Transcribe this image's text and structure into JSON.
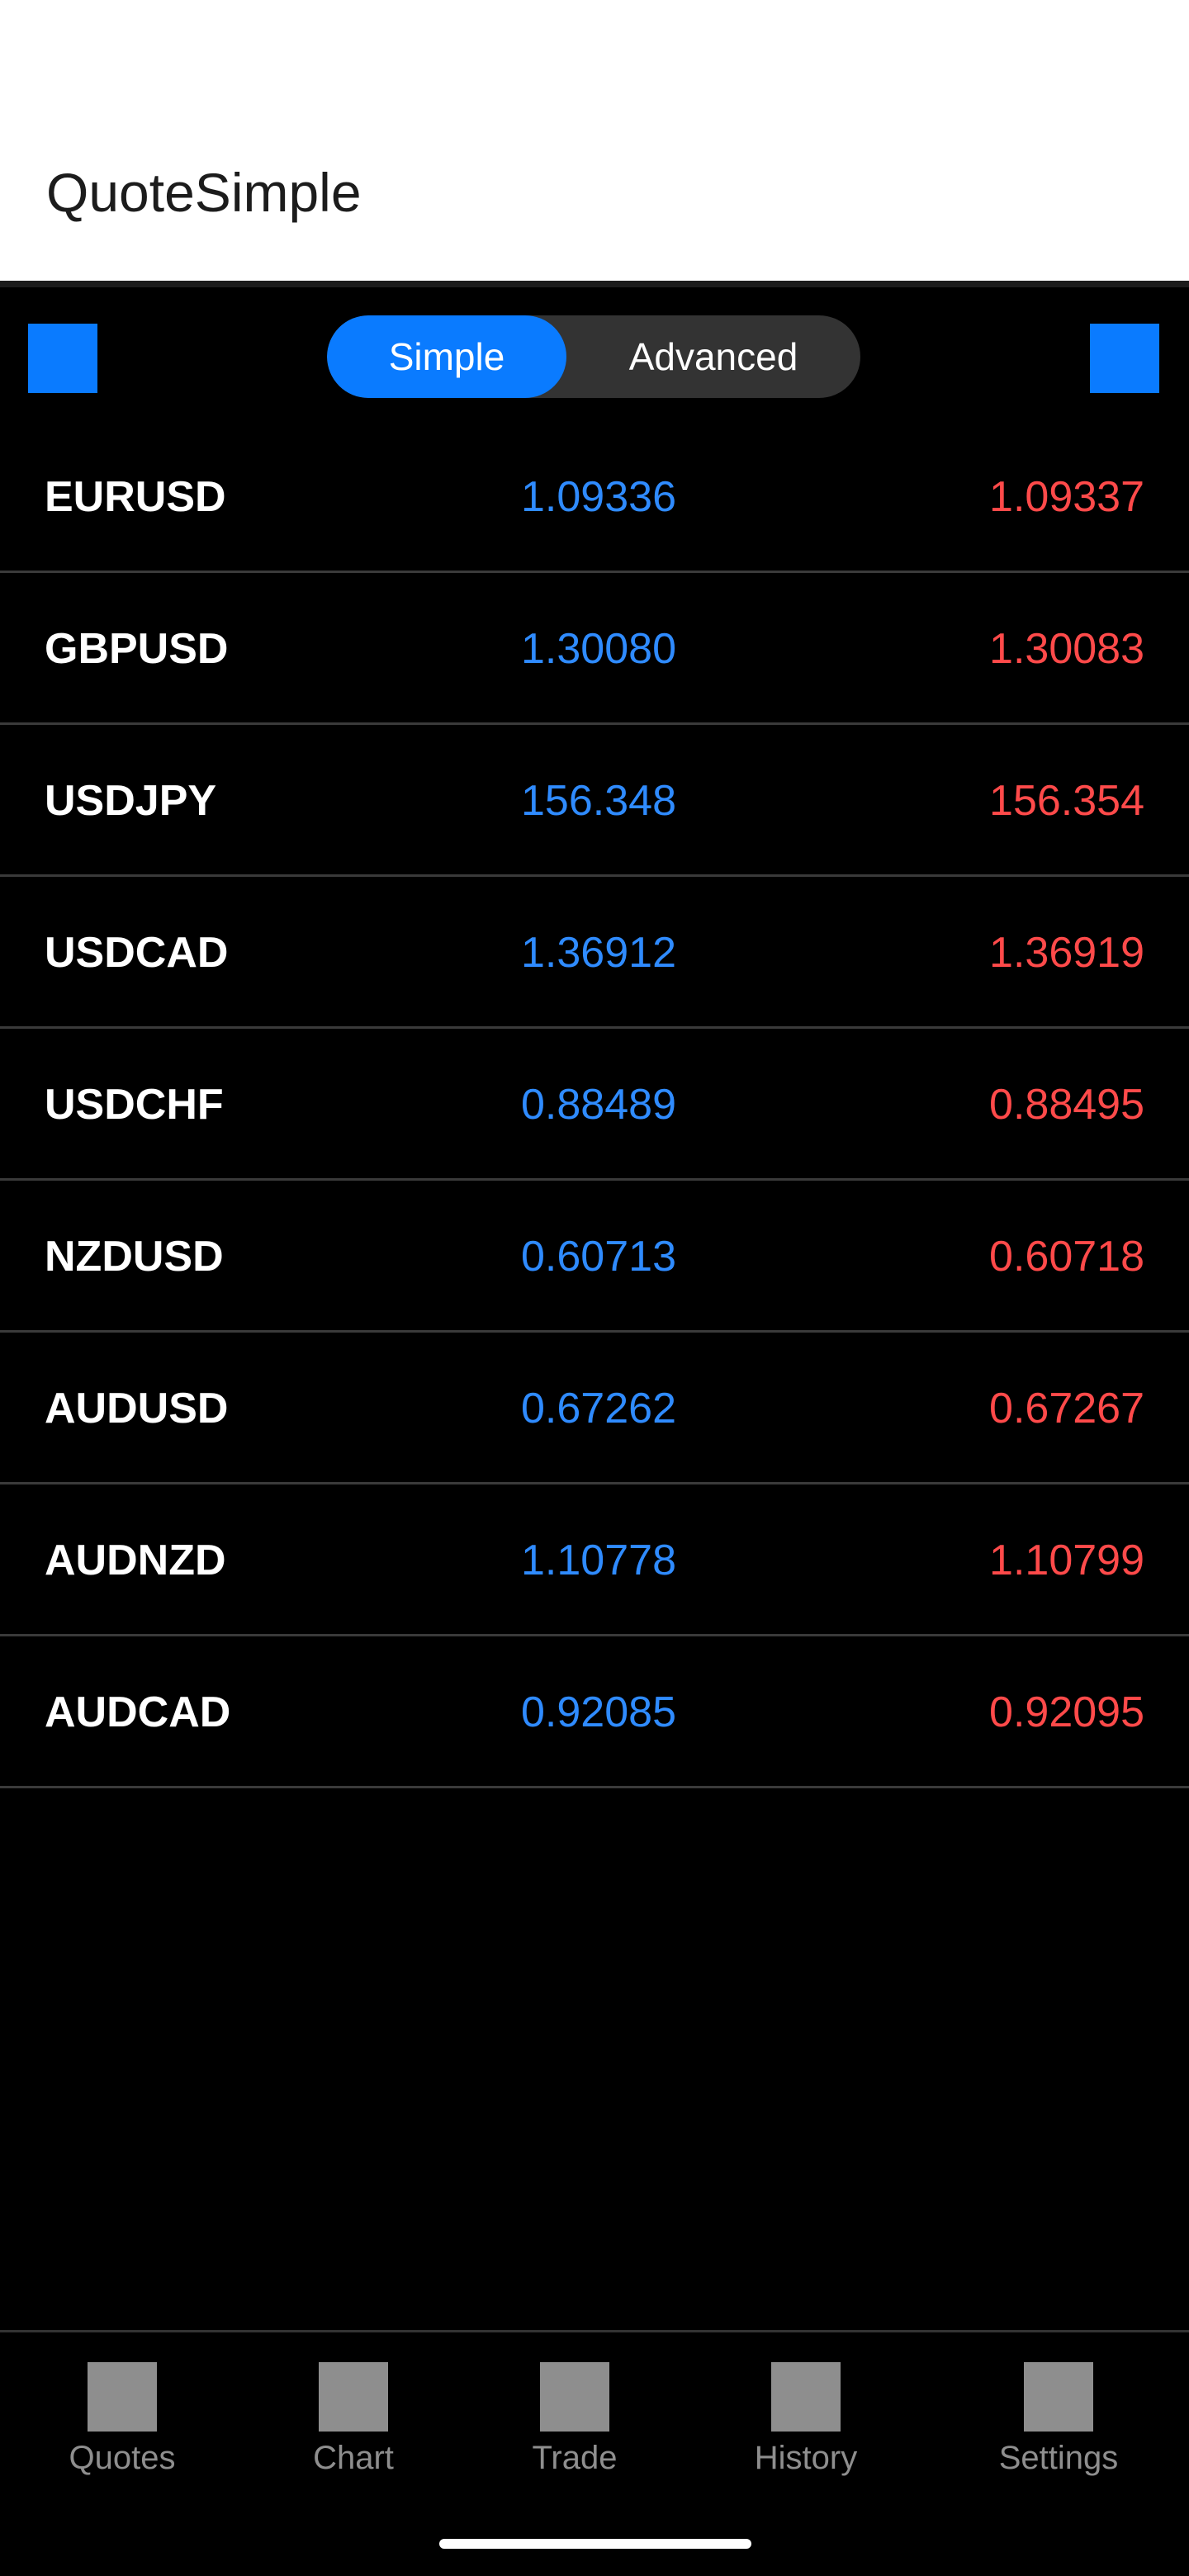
{
  "header": {
    "title": "QuoteSimple"
  },
  "toolbar": {
    "left_button_icon": "square-icon",
    "right_button_icon": "square-icon",
    "segments": [
      {
        "label": "Simple",
        "selected": true
      },
      {
        "label": "Advanced",
        "selected": false
      }
    ]
  },
  "quotes": [
    {
      "symbol": "EURUSD",
      "bid": "1.09336",
      "ask": "1.09337"
    },
    {
      "symbol": "GBPUSD",
      "bid": "1.30080",
      "ask": "1.30083"
    },
    {
      "symbol": "USDJPY",
      "bid": "156.348",
      "ask": "156.354"
    },
    {
      "symbol": "USDCAD",
      "bid": "1.36912",
      "ask": "1.36919"
    },
    {
      "symbol": "USDCHF",
      "bid": "0.88489",
      "ask": "0.88495"
    },
    {
      "symbol": "NZDUSD",
      "bid": "0.60713",
      "ask": "0.60718"
    },
    {
      "symbol": "AUDUSD",
      "bid": "0.67262",
      "ask": "0.67267"
    },
    {
      "symbol": "AUDNZD",
      "bid": "1.10778",
      "ask": "1.10799"
    },
    {
      "symbol": "AUDCAD",
      "bid": "0.92085",
      "ask": "0.92095"
    }
  ],
  "bottom_nav": {
    "items": [
      {
        "label": "Quotes",
        "icon": "quotes-icon"
      },
      {
        "label": "Chart",
        "icon": "chart-icon"
      },
      {
        "label": "Trade",
        "icon": "trade-icon"
      },
      {
        "label": "History",
        "icon": "history-icon"
      },
      {
        "label": "Settings",
        "icon": "settings-icon"
      }
    ]
  },
  "colors": {
    "accent": "#0a7bff",
    "bid": "#2f8bff",
    "ask": "#ff4a4a",
    "nav_inactive": "#8e8e8e"
  }
}
